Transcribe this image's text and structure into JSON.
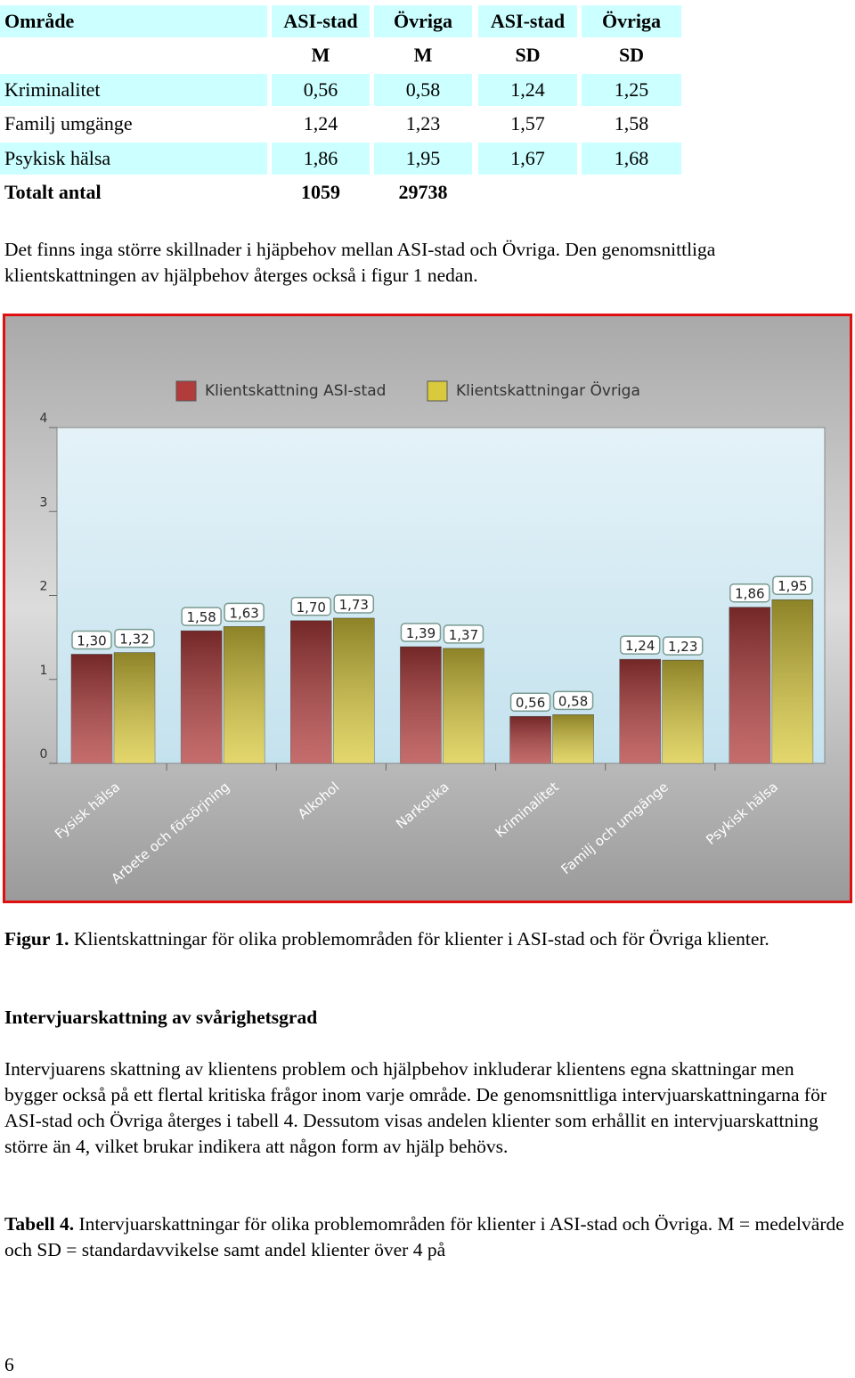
{
  "table": {
    "header": [
      [
        "Område",
        "ASI-stad",
        "Övriga",
        "ASI-stad",
        "Övriga"
      ],
      [
        null,
        "M",
        "M",
        "SD",
        "SD"
      ]
    ],
    "rows": [
      [
        "Kriminalitet",
        "0,56",
        "0,58",
        "1,24",
        "1,25"
      ],
      [
        "Familj umgänge",
        "1,24",
        "1,23",
        "1,57",
        "1,58"
      ],
      [
        "Psykisk hälsa",
        "1,86",
        "1,95",
        "1,67",
        "1,68"
      ],
      [
        "Totalt antal",
        "1059",
        "29738"
      ]
    ]
  },
  "paragraph_1": "Det finns inga större skillnader i hjäpbehov mellan ASI-stad och Övriga. Den genomsnittliga klientskattningen av hjälpbehov återges också i figur 1 nedan.",
  "chart_data": {
    "type": "bar",
    "categories": [
      "Fysisk hälsa",
      "Arbete och försörjning",
      "Alkohol",
      "Narkotika",
      "Kriminalitet",
      "Familj och umgänge",
      "Psykisk hälsa"
    ],
    "series": [
      {
        "name": "Klientskattning ASI-stad",
        "color": "#b23c3c",
        "values": [
          1.3,
          1.58,
          1.7,
          1.39,
          0.56,
          1.24,
          1.86
        ],
        "value_labels": [
          "1,30",
          "1,58",
          "1,70",
          "1,39",
          "0,56",
          "1,24",
          "1,86"
        ]
      },
      {
        "name": "Klientskattningar Övriga",
        "color": "#d9c93c",
        "values": [
          1.32,
          1.63,
          1.73,
          1.37,
          0.58,
          1.23,
          1.95
        ],
        "value_labels": [
          "1,32",
          "1,63",
          "1,73",
          "1,37",
          "0,58",
          "1,23",
          "1,95"
        ]
      }
    ],
    "ylim": [
      0,
      4
    ],
    "yticks": [
      0,
      1,
      2,
      3,
      4
    ],
    "grid": false,
    "legend": "top"
  },
  "figure_caption": {
    "label": "Figur 1.",
    "text": "Klientskattningar för olika problemområden för klienter i ASI-stad och för Övriga klienter."
  },
  "heading": "Intervjuarskattning av svårighetsgrad",
  "paragraph_2": "Intervjuarens skattning av klientens problem och hjälpbehov inkluderar klientens egna skattningar men bygger också på ett flertal kritiska frågor inom varje område. De genomsnittliga intervjuarskattningarna för ASI-stad och Övriga återges i tabell 4. Dessutom visas andelen klienter som erhållit en intervjuarskattning större än 4, vilket brukar indikera att någon form av hjälp behövs.",
  "table_caption": {
    "label": "Tabell 4.",
    "text": "Intervjuarskattningar för olika problemområden för klienter i ASI-stad och Övriga. M = medelvärde och SD = standardavvikelse samt andel klienter över 4 på"
  },
  "page_number": "6"
}
